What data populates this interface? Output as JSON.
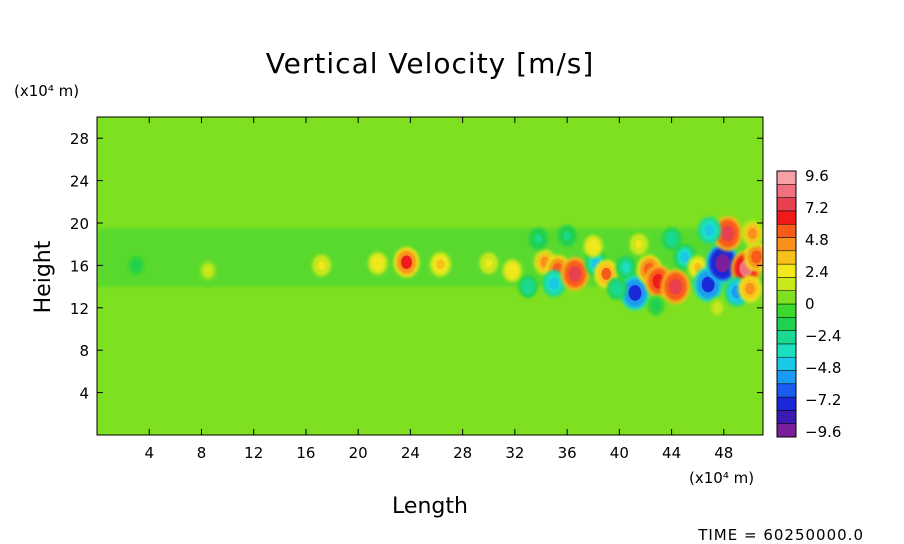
{
  "chart_data": {
    "type": "heatmap",
    "title": "Vertical Velocity [m/s]",
    "xlabel": "Length",
    "ylabel": "Height",
    "x_unit": "(x10⁴ m)",
    "y_unit": "(x10⁴ m)",
    "xlim": [
      0,
      51
    ],
    "ylim": [
      0,
      30
    ],
    "x_ticks": [
      4,
      8,
      12,
      16,
      20,
      24,
      28,
      32,
      36,
      40,
      44,
      48
    ],
    "y_ticks": [
      4,
      8,
      12,
      16,
      20,
      24,
      28
    ],
    "colorbar": {
      "min": -10.8,
      "max": 10.8,
      "ticks": [
        "9.6",
        "7.2",
        "4.8",
        "2.4",
        "0",
        "−2.4",
        "−4.8",
        "−7.2",
        "−9.6"
      ],
      "colors": [
        "#7a1f9a",
        "#3a1ab0",
        "#1a28d8",
        "#1a5cf0",
        "#1a9af0",
        "#1ac8e8",
        "#1ae0c0",
        "#1ad890",
        "#20d050",
        "#3cd830",
        "#7ee020",
        "#c8e81a",
        "#f0e81a",
        "#f8c01a",
        "#f8901a",
        "#f85a1a",
        "#f01a1a",
        "#e84050",
        "#f07080",
        "#f8a0a8"
      ]
    },
    "background_value": 0,
    "cells": [
      {
        "x": 23.7,
        "y": 16.3,
        "value": 6.5
      },
      {
        "x": 26.3,
        "y": 16.1,
        "value": 4.0
      },
      {
        "x": 21.5,
        "y": 16.2,
        "value": 3.0
      },
      {
        "x": 17.2,
        "y": 16.0,
        "value": 2.6
      },
      {
        "x": 30.0,
        "y": 16.2,
        "value": 2.5
      },
      {
        "x": 34.3,
        "y": 16.3,
        "value": 4.5
      },
      {
        "x": 35.3,
        "y": 15.6,
        "value": 6.0
      },
      {
        "x": 35.0,
        "y": 14.3,
        "value": -5.0
      },
      {
        "x": 36.6,
        "y": 15.2,
        "value": 8.0
      },
      {
        "x": 38.2,
        "y": 16.2,
        "value": -4.5
      },
      {
        "x": 39.0,
        "y": 15.2,
        "value": 5.5
      },
      {
        "x": 40.5,
        "y": 15.8,
        "value": -3.5
      },
      {
        "x": 41.2,
        "y": 13.4,
        "value": -8.5
      },
      {
        "x": 42.3,
        "y": 15.6,
        "value": 6.0
      },
      {
        "x": 43.0,
        "y": 14.5,
        "value": 7.5
      },
      {
        "x": 44.3,
        "y": 14.0,
        "value": 8.5
      },
      {
        "x": 45.0,
        "y": 16.8,
        "value": -4.5
      },
      {
        "x": 46.0,
        "y": 15.8,
        "value": 3.5
      },
      {
        "x": 46.8,
        "y": 14.2,
        "value": -8.5
      },
      {
        "x": 47.9,
        "y": 16.2,
        "value": -10.5
      },
      {
        "x": 48.3,
        "y": 19.0,
        "value": 8.5
      },
      {
        "x": 46.9,
        "y": 19.3,
        "value": -5.0
      },
      {
        "x": 49.7,
        "y": 15.7,
        "value": 9.0
      },
      {
        "x": 50.5,
        "y": 16.8,
        "value": 6.0
      },
      {
        "x": 49.0,
        "y": 13.5,
        "value": -6.0
      },
      {
        "x": 50.0,
        "y": 13.8,
        "value": 5.0
      },
      {
        "x": 33.0,
        "y": 14.0,
        "value": -3.0
      },
      {
        "x": 31.8,
        "y": 15.5,
        "value": 3.0
      },
      {
        "x": 39.8,
        "y": 13.8,
        "value": -3.0
      },
      {
        "x": 38.0,
        "y": 17.8,
        "value": 3.0
      },
      {
        "x": 41.5,
        "y": 18.0,
        "value": 2.5
      },
      {
        "x": 44.0,
        "y": 18.5,
        "value": -3.0
      },
      {
        "x": 50.2,
        "y": 19.0,
        "value": 4.5
      },
      {
        "x": 36.0,
        "y": 18.8,
        "value": -2.5
      },
      {
        "x": 42.8,
        "y": 12.2,
        "value": -2.0
      },
      {
        "x": 47.5,
        "y": 12.0,
        "value": 2.0
      },
      {
        "x": 33.8,
        "y": 18.5,
        "value": -2.8
      },
      {
        "x": 3.0,
        "y": 16.0,
        "value": -2.0
      },
      {
        "x": 8.5,
        "y": 15.5,
        "value": 2.0
      }
    ]
  },
  "footer": {
    "time_label": "TIME = 60250000.0"
  }
}
